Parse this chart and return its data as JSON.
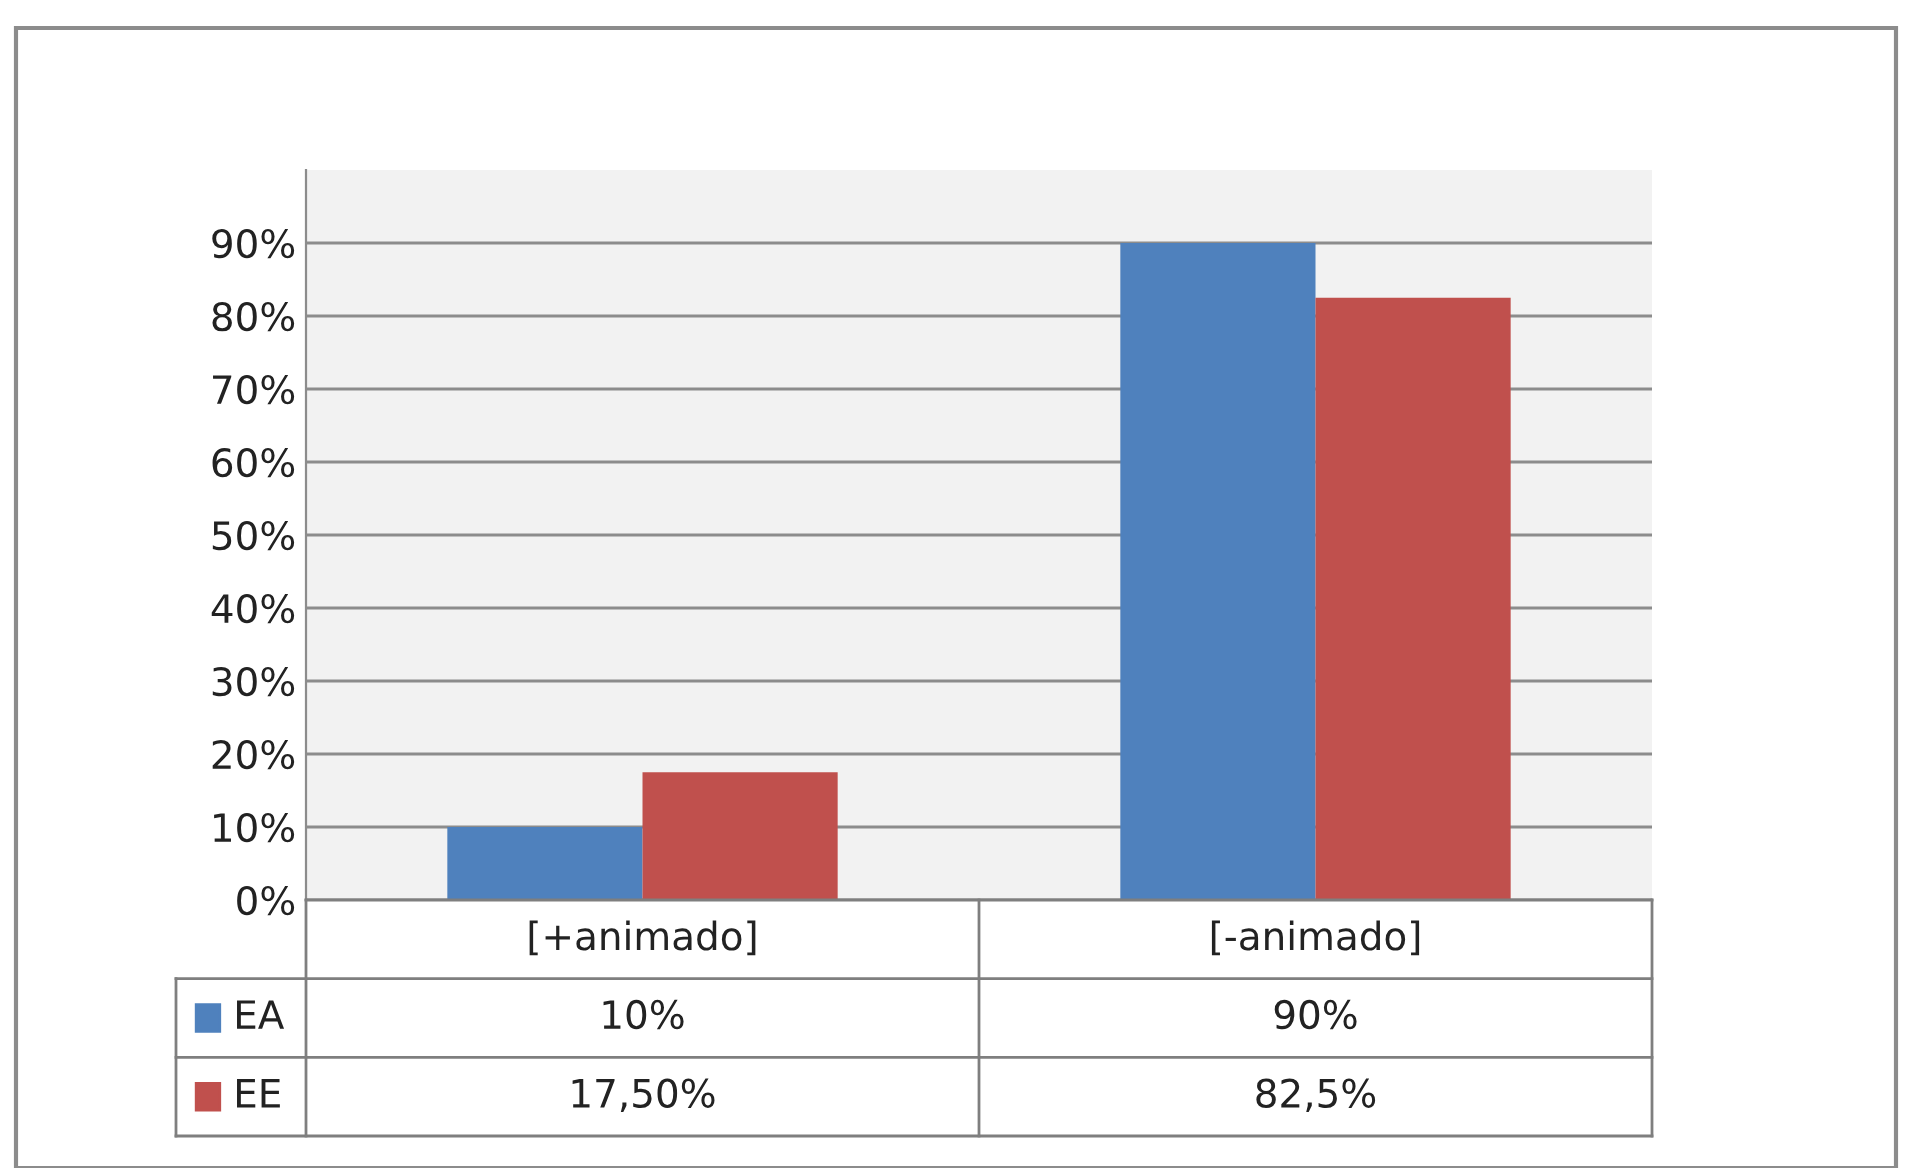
{
  "chart_data": {
    "type": "bar",
    "categories": [
      "[+animado]",
      "[-animado]"
    ],
    "series": [
      {
        "name": "EA",
        "color": "#4f81bd",
        "values": [
          10,
          90
        ],
        "value_labels": [
          "10%",
          "90%"
        ]
      },
      {
        "name": "EE",
        "color": "#c0504d",
        "values": [
          17.5,
          82.5
        ],
        "value_labels": [
          "17,50%",
          "82,5%"
        ]
      }
    ],
    "ylim": [
      0,
      100
    ],
    "yticks": [
      {
        "value": 0,
        "label": "0%"
      },
      {
        "value": 10,
        "label": "10%"
      },
      {
        "value": 20,
        "label": "20%"
      },
      {
        "value": 30,
        "label": "30%"
      },
      {
        "value": 40,
        "label": "40%"
      },
      {
        "value": 50,
        "label": "50%"
      },
      {
        "value": 60,
        "label": "60%"
      },
      {
        "value": 70,
        "label": "70%"
      },
      {
        "value": 80,
        "label": "80%"
      },
      {
        "value": 90,
        "label": "90%"
      }
    ],
    "grid": "y",
    "legend": "bottom"
  }
}
